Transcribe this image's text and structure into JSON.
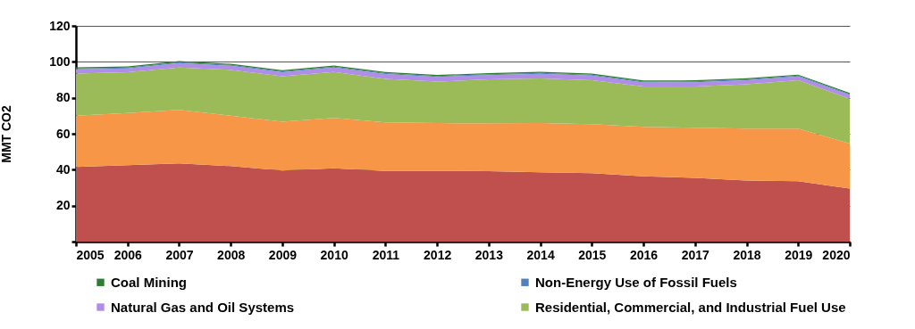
{
  "chart_data": {
    "type": "area",
    "stacked": true,
    "ylabel": "MMT CO2",
    "x": [
      2005,
      2006,
      2007,
      2008,
      2009,
      2010,
      2011,
      2012,
      2013,
      2014,
      2015,
      2016,
      2017,
      2018,
      2019,
      2020
    ],
    "xlim": [
      2005,
      2020
    ],
    "xticks": [
      2005,
      2006,
      2007,
      2008,
      2009,
      2010,
      2011,
      2012,
      2013,
      2014,
      2015,
      2016,
      2017,
      2018,
      2019,
      2020
    ],
    "ylim": [
      0,
      120
    ],
    "yticks": [
      {
        "value": 0,
        "label": null
      },
      20,
      40,
      60,
      80,
      100,
      120
    ],
    "grid": "y",
    "legend": "bottom",
    "series": [
      {
        "color": "#c0504d",
        "values": [
          41.5,
          42.5,
          43.5,
          42,
          39.5,
          40.8,
          39.3,
          39.3,
          39.2,
          38.5,
          38,
          36.3,
          35.5,
          34,
          33.6,
          29.5
        ]
      },
      {
        "color": "#f79646",
        "values": [
          28.5,
          29,
          29.8,
          28,
          27.2,
          28,
          27,
          26.6,
          26.6,
          27.4,
          27.3,
          27.6,
          27.8,
          28.8,
          29.3,
          25
        ]
      },
      {
        "name": "Residential, Commercial, and Industrial Fuel Use",
        "color": "#9bbb59",
        "values": [
          23.5,
          22.7,
          23.5,
          25.5,
          25.3,
          25.5,
          24.2,
          23.1,
          24.4,
          24.9,
          24.5,
          22.4,
          23,
          24.7,
          26.9,
          25
        ]
      },
      {
        "name": "Natural Gas and Oil Systems",
        "color": "#b08ee8",
        "values": [
          2.3,
          2.1,
          2.5,
          2.3,
          2.2,
          2.5,
          2.7,
          2.6,
          2.4,
          2.6,
          2.6,
          2.2,
          2.3,
          2.3,
          2,
          2.1
        ]
      },
      {
        "name": "Non-Energy Use of Fossil Fuels",
        "color": "#4f81bd",
        "values": [
          0.5,
          0.5,
          0.5,
          0.5,
          0.5,
          0.5,
          0.5,
          0.5,
          0.5,
          0.5,
          0.5,
          0.5,
          0.5,
          0.5,
          0.5,
          0.5
        ]
      },
      {
        "name": "Coal Mining",
        "color": "#2e7d32",
        "values": [
          0.6,
          0.6,
          0.6,
          0.6,
          0.6,
          0.6,
          0.6,
          0.6,
          0.6,
          0.6,
          0.6,
          0.6,
          0.6,
          0.6,
          0.6,
          0.6
        ]
      }
    ]
  }
}
